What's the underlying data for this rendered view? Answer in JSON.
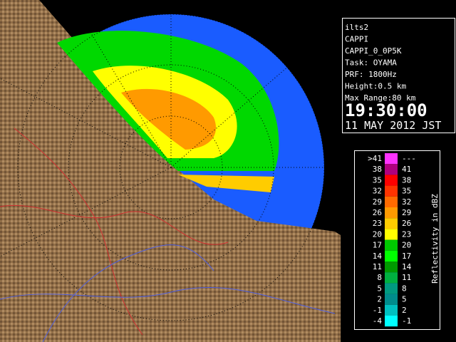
{
  "info": {
    "lines": [
      "ilts2",
      "CAPPI",
      "CAPPI_0_0P5K",
      "Task: OYAMA",
      "PRF: 1800Hz",
      "Height:0.5 km",
      "Max Range:80 km"
    ],
    "time": "19:30:00",
    "date": "11 MAY 2012 JST"
  },
  "legend": {
    "title": "Reflectivity in dBZ",
    "rows": [
      {
        "low": ">41",
        "high": "---",
        "color": "#ff33ff"
      },
      {
        "low": "38",
        "high": "41",
        "color": "#b0007f"
      },
      {
        "low": "35",
        "high": "38",
        "color": "#ff0000"
      },
      {
        "low": "32",
        "high": "35",
        "color": "#ff3300"
      },
      {
        "low": "29",
        "high": "32",
        "color": "#ff6a00"
      },
      {
        "low": "26",
        "high": "29",
        "color": "#ff9a00"
      },
      {
        "low": "23",
        "high": "26",
        "color": "#ffcc00"
      },
      {
        "low": "20",
        "high": "23",
        "color": "#ffff00"
      },
      {
        "low": "17",
        "high": "20",
        "color": "#00c800"
      },
      {
        "low": "14",
        "high": "17",
        "color": "#00ff00"
      },
      {
        "low": "11",
        "high": "14",
        "color": "#009a00"
      },
      {
        "low": "8",
        "high": "11",
        "color": "#00b040"
      },
      {
        "low": "5",
        "high": "8",
        "color": "#009a80"
      },
      {
        "low": "2",
        "high": "5",
        "color": "#008c8c"
      },
      {
        "low": "-1",
        "high": "2",
        "color": "#00c0c0"
      },
      {
        "low": "-4",
        "high": "-1",
        "color": "#00ffff"
      }
    ]
  }
}
